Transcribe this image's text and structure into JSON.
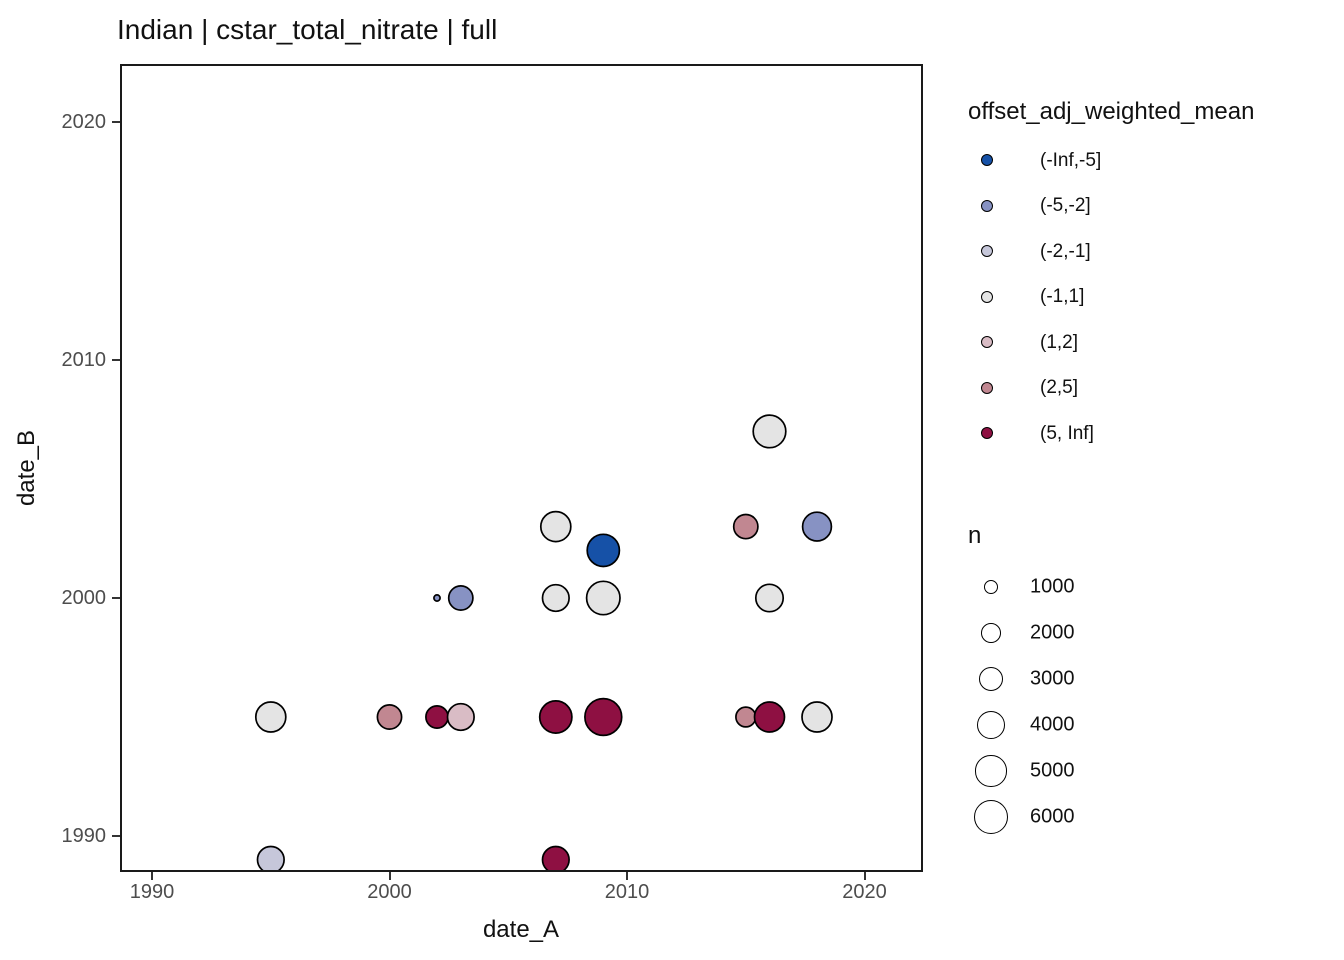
{
  "title": "Indian | cstar_total_nitrate | full",
  "axes": {
    "x_label": "date_A",
    "y_label": "date_B",
    "x_ticks": [
      "1990",
      "2000",
      "2010",
      "2020"
    ],
    "y_ticks": [
      "1990",
      "2000",
      "2010",
      "2020"
    ]
  },
  "legend": {
    "color_title": "offset_adj_weighted_mean",
    "color_items": [
      {
        "label": "(-Inf,-5]",
        "color": "#1651A7"
      },
      {
        "label": "(-5,-2]",
        "color": "#8792C3"
      },
      {
        "label": "(-2,-1]",
        "color": "#C6C7DA"
      },
      {
        "label": "(-1,1]",
        "color": "#E4E4E4"
      },
      {
        "label": "(1,2]",
        "color": "#D9BCC5"
      },
      {
        "label": "(2,5]",
        "color": "#C18791"
      },
      {
        "label": "(5, Inf]",
        "color": "#8E1042"
      }
    ],
    "size_title": "n",
    "size_items": [
      "1000",
      "2000",
      "3000",
      "4000",
      "5000",
      "6000"
    ]
  },
  "chart_data": {
    "type": "scatter",
    "title": "Indian | cstar_total_nitrate | full",
    "xlabel": "date_A",
    "ylabel": "date_B",
    "xlim": [
      1988.6,
      2022.2
    ],
    "ylim": [
      1988.4,
      2022.8
    ],
    "grid": false,
    "legend_position": "right",
    "color_variable": "offset_adj_weighted_mean",
    "size_variable": "n",
    "points": [
      {
        "x": 1995,
        "y": 1995,
        "n": 4600,
        "bin": "(-1,1]"
      },
      {
        "x": 1995,
        "y": 1989,
        "n": 3600,
        "bin": "(-2,-1]"
      },
      {
        "x": 2000,
        "y": 1995,
        "n": 3000,
        "bin": "(2,5]"
      },
      {
        "x": 2002,
        "y": 2000,
        "n": 200,
        "bin": "(-5,-2]"
      },
      {
        "x": 2002,
        "y": 1995,
        "n": 2500,
        "bin": "(5, Inf]"
      },
      {
        "x": 2003,
        "y": 2000,
        "n": 3000,
        "bin": "(-5,-2]"
      },
      {
        "x": 2003,
        "y": 1995,
        "n": 3600,
        "bin": "(1,2]"
      },
      {
        "x": 2007,
        "y": 2003,
        "n": 4600,
        "bin": "(-1,1]"
      },
      {
        "x": 2007,
        "y": 2000,
        "n": 3600,
        "bin": "(-1,1]"
      },
      {
        "x": 2007,
        "y": 1995,
        "n": 5300,
        "bin": "(5, Inf]"
      },
      {
        "x": 2007,
        "y": 1989,
        "n": 3600,
        "bin": "(5, Inf]"
      },
      {
        "x": 2009,
        "y": 2002,
        "n": 5300,
        "bin": "(-Inf,-5]"
      },
      {
        "x": 2009,
        "y": 2000,
        "n": 5700,
        "bin": "(-1,1]"
      },
      {
        "x": 2009,
        "y": 1995,
        "n": 6900,
        "bin": "(5, Inf]"
      },
      {
        "x": 2015,
        "y": 2003,
        "n": 3000,
        "bin": "(2,5]"
      },
      {
        "x": 2015,
        "y": 1995,
        "n": 2000,
        "bin": "(2,5]"
      },
      {
        "x": 2016,
        "y": 2007,
        "n": 5400,
        "bin": "(-1,1]"
      },
      {
        "x": 2016,
        "y": 2000,
        "n": 3800,
        "bin": "(-1,1]"
      },
      {
        "x": 2016,
        "y": 1995,
        "n": 4600,
        "bin": "(5, Inf]"
      },
      {
        "x": 2018,
        "y": 2003,
        "n": 4200,
        "bin": "(-5,-2]"
      },
      {
        "x": 2018,
        "y": 1995,
        "n": 4600,
        "bin": "(-1,1]"
      }
    ]
  }
}
